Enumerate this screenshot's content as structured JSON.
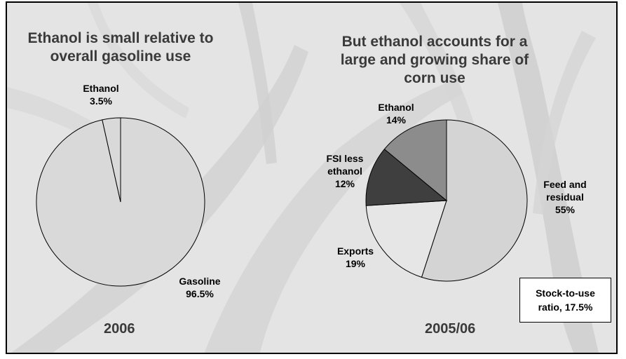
{
  "colors": {
    "gasoline": "#d9d9d9",
    "feed": "#d4d4d4",
    "exports": "#e6e6e6",
    "fsi": "#3f3f3f",
    "ethanol_corn": "#8c8c8c",
    "ethanol_gas": "#d9d9d9",
    "outline": "#000000"
  },
  "chart_data": [
    {
      "type": "pie",
      "title": "Ethanol is small relative to\noverall gasoline use",
      "caption": "2006",
      "slices": [
        {
          "label": "Gasoline",
          "value": 96.5,
          "display": "96.5%"
        },
        {
          "label": "Ethanol",
          "value": 3.5,
          "display": "3.5%"
        }
      ]
    },
    {
      "type": "pie",
      "title": "But ethanol accounts for a\nlarge and growing share of\ncorn use",
      "caption": "2005/06",
      "slices": [
        {
          "label": "Feed and residual",
          "label_lines": [
            "Feed and",
            "residual"
          ],
          "value": 55,
          "display": "55%"
        },
        {
          "label": "Exports",
          "label_lines": [
            "Exports"
          ],
          "value": 19,
          "display": "19%"
        },
        {
          "label": "FSI less ethanol",
          "label_lines": [
            "FSI less",
            "ethanol"
          ],
          "value": 12,
          "display": "12%"
        },
        {
          "label": "Ethanol",
          "label_lines": [
            "Ethanol"
          ],
          "value": 14,
          "display": "14%"
        }
      ]
    }
  ],
  "annotation": {
    "stock_line1": "Stock-to-use",
    "stock_line2": "ratio, 17.5%"
  }
}
